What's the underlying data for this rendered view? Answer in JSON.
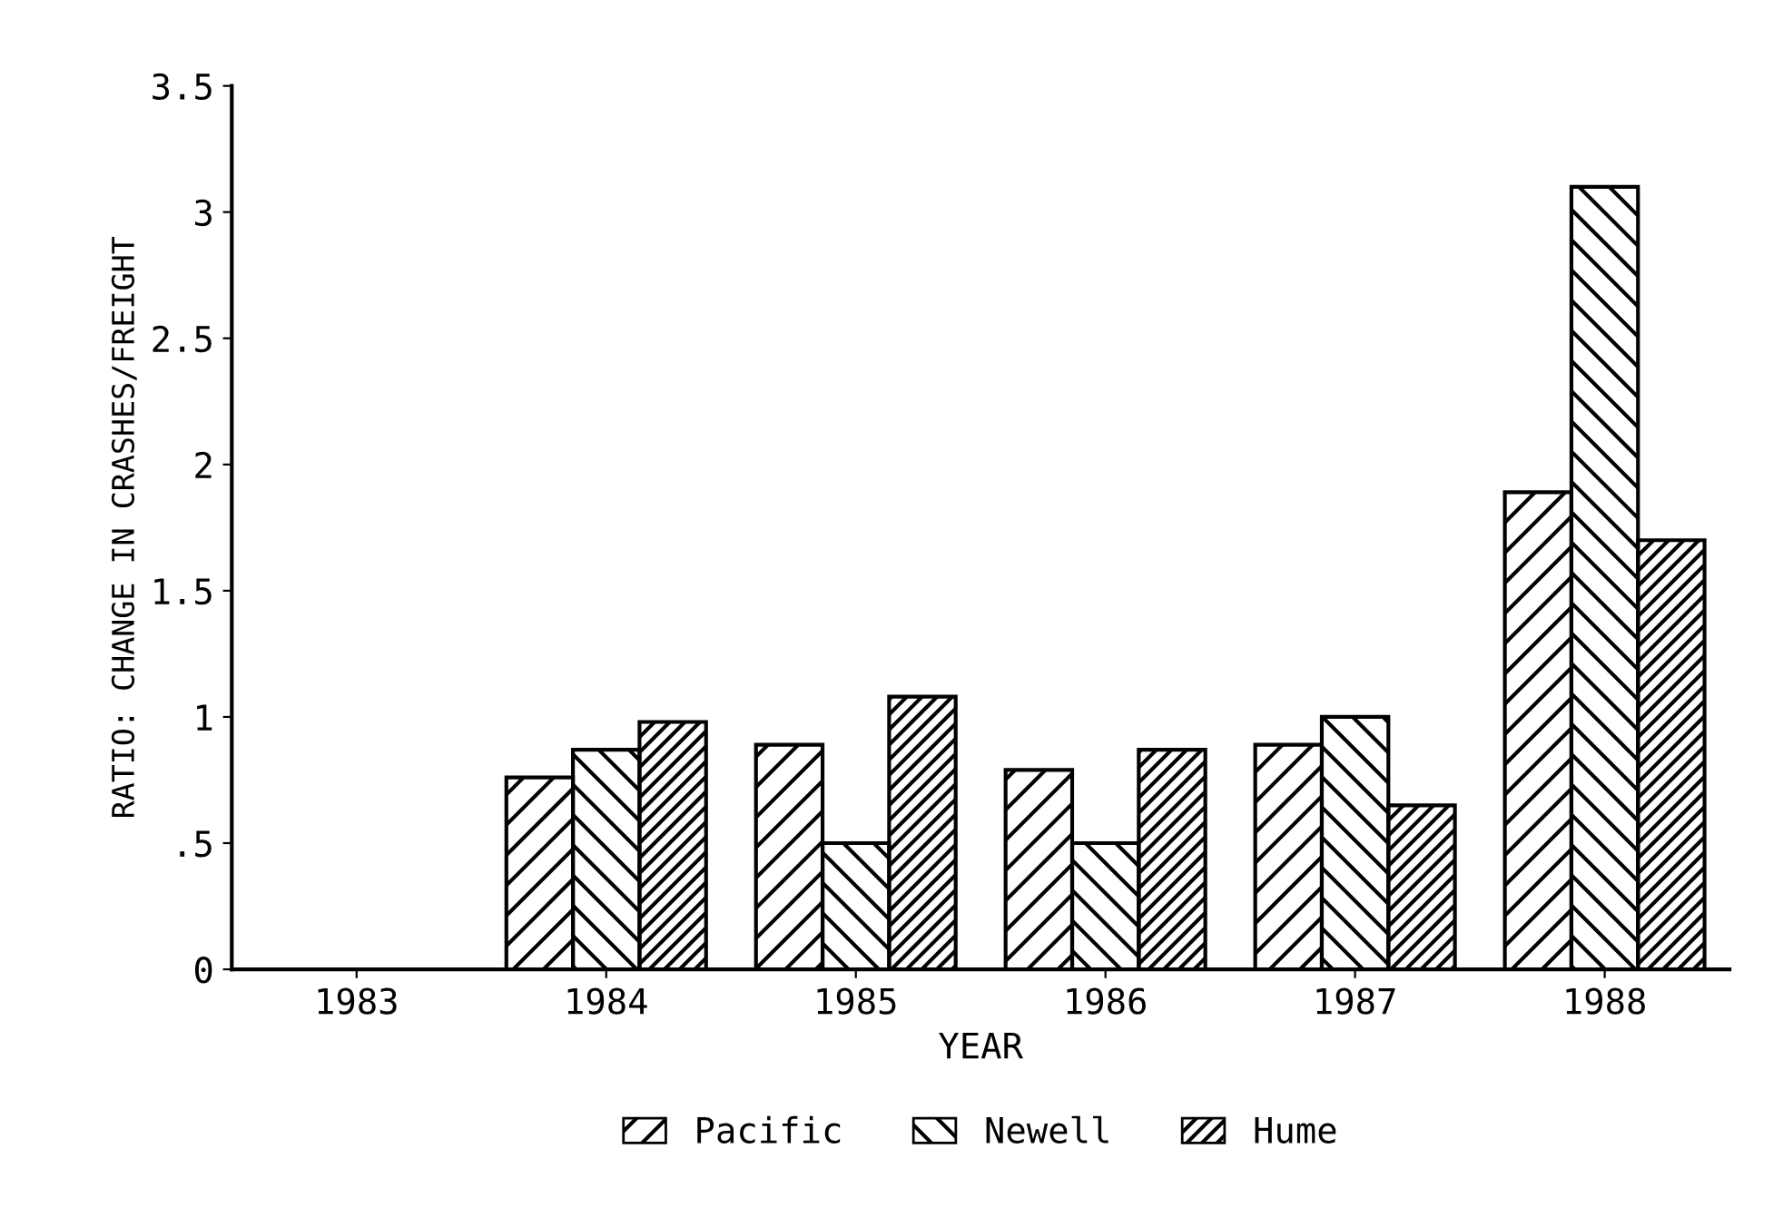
{
  "chart_data": {
    "type": "bar",
    "xlabel": "YEAR",
    "ylabel": "RATIO: CHANGE IN CRASHES/FREIGHT",
    "categories": [
      "1983",
      "1984",
      "1985",
      "1986",
      "1987",
      "1988"
    ],
    "series": [
      {
        "name": "Pacific",
        "color": "#000000",
        "values": [
          null,
          0.76,
          0.89,
          0.79,
          0.89,
          1.89
        ]
      },
      {
        "name": "Newell",
        "color": "#000000",
        "values": [
          null,
          0.87,
          0.5,
          0.5,
          1.0,
          3.1
        ]
      },
      {
        "name": "Hume",
        "color": "#000000",
        "values": [
          null,
          0.98,
          1.08,
          0.87,
          0.65,
          1.7
        ]
      }
    ],
    "ylim": [
      0,
      3.5
    ],
    "yticks": [
      0,
      {
        "value": 0.5,
        "label": ".5"
      },
      1,
      1.5,
      2,
      2.5,
      3,
      3.5
    ],
    "grid": false,
    "legend": "bottom"
  }
}
